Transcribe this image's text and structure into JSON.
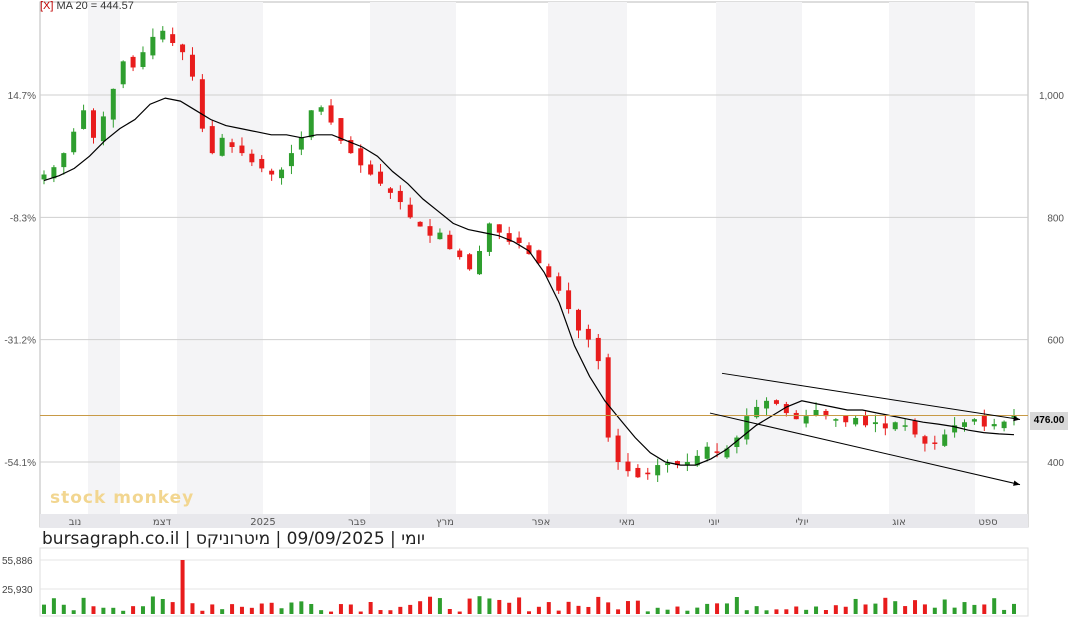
{
  "legend": {
    "close_mark": "[X]",
    "ma_label": "MA 20 = 444.57"
  },
  "caption": "יומי | 09/09/2025 | מיטרוניקס | bursagraph.co.il",
  "watermark": "stock monkey",
  "current_price": "476.00",
  "colors": {
    "up": "#2e9e2e",
    "down": "#e81c1c",
    "ma": "#000000",
    "price_line": "#c89a46",
    "grid": "#cfcfcf",
    "band": "#f4f4f6"
  },
  "chart_data": {
    "type": "candlestick",
    "y_right_ticks": [
      "1,000",
      "800",
      "600",
      "400"
    ],
    "y_right_values": [
      1000,
      800,
      600,
      400
    ],
    "y_left_ticks": [
      "14.7%",
      "-8.3%",
      "-31.2%",
      "-54.1%"
    ],
    "months": [
      "נוב",
      "דצמ",
      "2025",
      "פבר",
      "מרץ",
      "אפר",
      "מאי",
      "יוני",
      "יולי",
      "אוג",
      "ספט"
    ],
    "ylim": [
      330,
      1150
    ],
    "last_close": 476.0,
    "ma20_last": 444.57,
    "close_series": [
      870,
      882,
      905,
      940,
      975,
      930,
      965,
      1010,
      1055,
      1045,
      1070,
      1095,
      1105,
      1085,
      1070,
      1030,
      945,
      905,
      930,
      915,
      905,
      890,
      880,
      870,
      878,
      905,
      930,
      975,
      980,
      955,
      925,
      905,
      885,
      870,
      855,
      840,
      825,
      800,
      785,
      770,
      775,
      748,
      735,
      715,
      745,
      790,
      775,
      760,
      758,
      740,
      725,
      702,
      680,
      650,
      615,
      600,
      565,
      440,
      400,
      385,
      375,
      380,
      395,
      398,
      395,
      400,
      410,
      425,
      415,
      422,
      440,
      475,
      490,
      500,
      495,
      480,
      470,
      475,
      485,
      475,
      470,
      465,
      472,
      460,
      465,
      455,
      465,
      460,
      445,
      430,
      430,
      445,
      460,
      465,
      470,
      458,
      462,
      466,
      476
    ],
    "ma20_series": [
      860,
      868,
      880,
      900,
      925,
      945,
      960,
      985,
      995,
      990,
      975,
      960,
      950,
      945,
      940,
      935,
      935,
      930,
      935,
      935,
      925,
      915,
      900,
      875,
      855,
      830,
      810,
      790,
      780,
      775,
      770,
      760,
      745,
      710,
      660,
      590,
      540,
      500,
      470,
      440,
      415,
      400,
      395,
      395,
      405,
      420,
      440,
      460,
      475,
      490,
      500,
      495,
      490,
      485,
      485,
      480,
      475,
      470,
      465,
      462,
      458,
      452,
      448,
      446,
      444.57
    ],
    "volume_ticks": [
      "55,886",
      "25,930"
    ],
    "volume_values": [
      55886,
      25930
    ],
    "sloped_channel": {
      "upper": [
        [
          545,
          448
        ],
        [
          476,
          476
        ]
      ],
      "lower": [
        [
          480,
          395
        ],
        [
          363,
          378
        ]
      ]
    }
  }
}
